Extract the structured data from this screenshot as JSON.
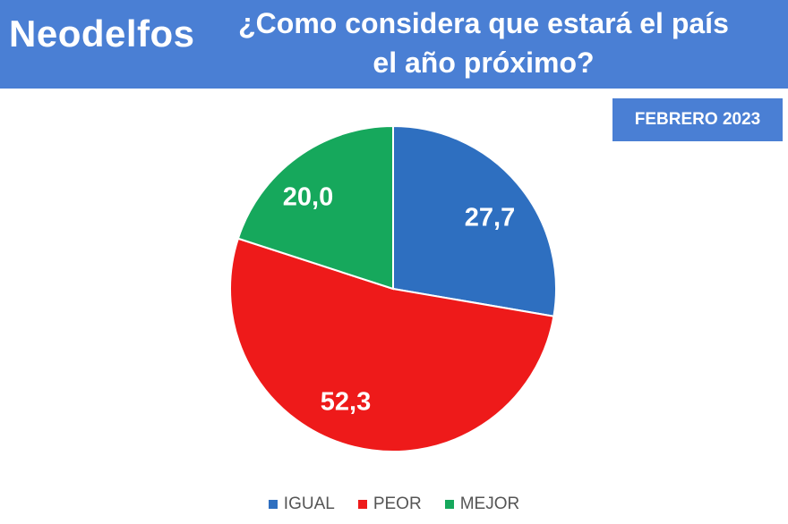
{
  "header": {
    "brand": "Neodelfos",
    "question": "¿Como considera que estará el país el año próximo?"
  },
  "badge": "FEBRERO 2023",
  "chart_data": {
    "type": "pie",
    "categories": [
      "IGUAL",
      "PEOR",
      "MEJOR"
    ],
    "values": [
      27.7,
      52.3,
      20.0
    ],
    "data_labels": [
      "27,7",
      "52,3",
      "20,0"
    ],
    "colors": [
      "#2e6fc0",
      "#ee1a1a",
      "#16a85c"
    ],
    "start_angle_deg": 0,
    "direction": "clockwise",
    "legend_position": "bottom"
  },
  "legend": {
    "items": [
      {
        "label": "IGUAL",
        "color": "#2e6fc0"
      },
      {
        "label": "PEOR",
        "color": "#ee1a1a"
      },
      {
        "label": "MEJOR",
        "color": "#16a85c"
      }
    ]
  }
}
